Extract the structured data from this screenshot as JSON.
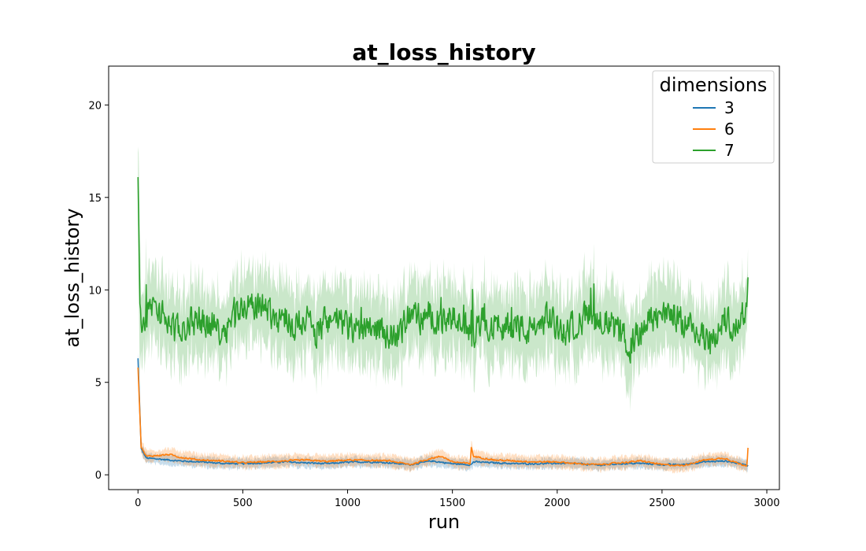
{
  "chart_data": {
    "type": "line",
    "title": "at_loss_history",
    "xlabel": "run",
    "ylabel": "at_loss_history",
    "xlim": [
      -140,
      3060
    ],
    "ylim": [
      -0.8,
      22.1
    ],
    "xticks": [
      0,
      500,
      1000,
      1500,
      2000,
      2500,
      3000
    ],
    "yticks": [
      0,
      5,
      10,
      15,
      20
    ],
    "grid": false,
    "legend": {
      "title": "dimensions",
      "placement": "top-right"
    },
    "x_max_run": 2910,
    "series": [
      {
        "name": "3",
        "color": "#1f77b4",
        "start_value": 6.3,
        "mean_values": [
          [
            0,
            6.3
          ],
          [
            15,
            1.4
          ],
          [
            40,
            0.9
          ],
          [
            100,
            0.85
          ],
          [
            200,
            0.75
          ],
          [
            300,
            0.7
          ],
          [
            400,
            0.62
          ],
          [
            500,
            0.6
          ],
          [
            600,
            0.65
          ],
          [
            700,
            0.7
          ],
          [
            800,
            0.65
          ],
          [
            900,
            0.6
          ],
          [
            1000,
            0.68
          ],
          [
            1100,
            0.7
          ],
          [
            1200,
            0.65
          ],
          [
            1300,
            0.55
          ],
          [
            1400,
            0.75
          ],
          [
            1500,
            0.6
          ],
          [
            1590,
            0.55
          ],
          [
            1600,
            0.7
          ],
          [
            1700,
            0.65
          ],
          [
            1800,
            0.6
          ],
          [
            1900,
            0.6
          ],
          [
            2000,
            0.62
          ],
          [
            2100,
            0.6
          ],
          [
            2200,
            0.52
          ],
          [
            2300,
            0.6
          ],
          [
            2400,
            0.62
          ],
          [
            2500,
            0.55
          ],
          [
            2600,
            0.55
          ],
          [
            2700,
            0.7
          ],
          [
            2800,
            0.75
          ],
          [
            2900,
            0.55
          ],
          [
            2910,
            0.5
          ]
        ],
        "band_halfwidth": 0.25
      },
      {
        "name": "6",
        "color": "#ff7f0e",
        "start_value": 5.8,
        "mean_values": [
          [
            0,
            5.8
          ],
          [
            15,
            1.5
          ],
          [
            40,
            1.0
          ],
          [
            100,
            1.05
          ],
          [
            150,
            1.1
          ],
          [
            200,
            0.95
          ],
          [
            300,
            0.8
          ],
          [
            400,
            0.75
          ],
          [
            500,
            0.65
          ],
          [
            600,
            0.7
          ],
          [
            700,
            0.75
          ],
          [
            800,
            0.8
          ],
          [
            900,
            0.72
          ],
          [
            1000,
            0.8
          ],
          [
            1100,
            0.78
          ],
          [
            1200,
            0.75
          ],
          [
            1300,
            0.55
          ],
          [
            1400,
            0.9
          ],
          [
            1450,
            1.0
          ],
          [
            1500,
            0.7
          ],
          [
            1585,
            0.6
          ],
          [
            1590,
            1.5
          ],
          [
            1600,
            1.0
          ],
          [
            1700,
            0.8
          ],
          [
            1800,
            0.75
          ],
          [
            1900,
            0.7
          ],
          [
            2000,
            0.7
          ],
          [
            2100,
            0.6
          ],
          [
            2200,
            0.55
          ],
          [
            2300,
            0.65
          ],
          [
            2400,
            0.75
          ],
          [
            2500,
            0.55
          ],
          [
            2600,
            0.5
          ],
          [
            2700,
            0.8
          ],
          [
            2800,
            0.9
          ],
          [
            2880,
            0.55
          ],
          [
            2905,
            0.5
          ],
          [
            2910,
            1.5
          ]
        ],
        "band_halfwidth": 0.3
      },
      {
        "name": "7",
        "color": "#2ca02c",
        "start_value": 16.1,
        "mean_values": [
          [
            0,
            16.1
          ],
          [
            10,
            8.5
          ],
          [
            30,
            8.0
          ],
          [
            60,
            9.2
          ],
          [
            100,
            8.8
          ],
          [
            150,
            8.2
          ],
          [
            200,
            7.6
          ],
          [
            250,
            8.3
          ],
          [
            300,
            8.4
          ],
          [
            350,
            8.1
          ],
          [
            400,
            7.8
          ],
          [
            450,
            8.5
          ],
          [
            500,
            9.2
          ],
          [
            550,
            9.0
          ],
          [
            600,
            9.3
          ],
          [
            650,
            8.5
          ],
          [
            700,
            8.6
          ],
          [
            750,
            8.0
          ],
          [
            800,
            8.7
          ],
          [
            850,
            7.3
          ],
          [
            900,
            8.5
          ],
          [
            950,
            8.4
          ],
          [
            1000,
            8.0
          ],
          [
            1050,
            7.8
          ],
          [
            1100,
            8.2
          ],
          [
            1150,
            7.9
          ],
          [
            1200,
            7.5
          ],
          [
            1250,
            7.7
          ],
          [
            1300,
            8.8
          ],
          [
            1350,
            8.4
          ],
          [
            1400,
            8.7
          ],
          [
            1450,
            8.1
          ],
          [
            1500,
            8.5
          ],
          [
            1550,
            8.0
          ],
          [
            1600,
            7.6
          ],
          [
            1650,
            8.4
          ],
          [
            1700,
            7.9
          ],
          [
            1750,
            8.1
          ],
          [
            1800,
            8.2
          ],
          [
            1850,
            7.7
          ],
          [
            1900,
            7.9
          ],
          [
            1950,
            8.6
          ],
          [
            2000,
            8.0
          ],
          [
            2050,
            7.8
          ],
          [
            2100,
            8.3
          ],
          [
            2150,
            8.7
          ],
          [
            2200,
            8.5
          ],
          [
            2250,
            8.2
          ],
          [
            2300,
            7.6
          ],
          [
            2350,
            7.0
          ],
          [
            2400,
            7.8
          ],
          [
            2450,
            8.4
          ],
          [
            2500,
            8.6
          ],
          [
            2550,
            8.8
          ],
          [
            2600,
            8.2
          ],
          [
            2650,
            8.0
          ],
          [
            2700,
            7.4
          ],
          [
            2750,
            7.3
          ],
          [
            2800,
            8.5
          ],
          [
            2850,
            8.1
          ],
          [
            2900,
            8.8
          ],
          [
            2910,
            10.5
          ]
        ],
        "band_halfwidth": 1.8
      }
    ]
  }
}
